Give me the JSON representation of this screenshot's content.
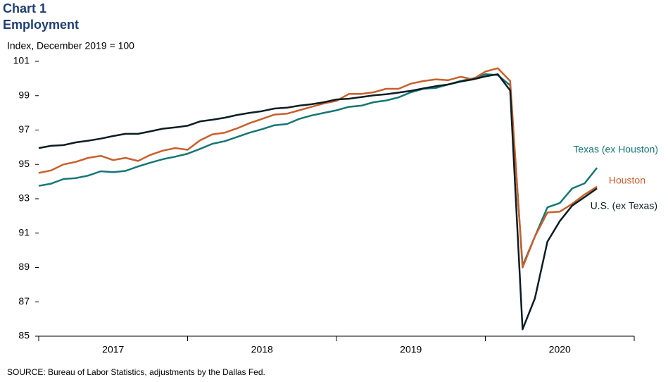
{
  "chart_data": {
    "type": "line",
    "title": "Chart 1",
    "subtitle": "Employment",
    "y_label": "Index,  December 2019 = 100",
    "source": "SOURCE:  Bureau  of Labor Statistics, adjustments by the Dallas Fed.",
    "x": [
      2017,
      2017.083,
      2017.167,
      2017.25,
      2017.333,
      2017.417,
      2017.5,
      2017.583,
      2017.667,
      2017.75,
      2017.833,
      2017.917,
      2018,
      2018.083,
      2018.167,
      2018.25,
      2018.333,
      2018.417,
      2018.5,
      2018.583,
      2018.667,
      2018.75,
      2018.833,
      2018.917,
      2019,
      2019.083,
      2019.167,
      2019.25,
      2019.333,
      2019.417,
      2019.5,
      2019.583,
      2019.667,
      2019.75,
      2019.833,
      2019.917,
      2020,
      2020.083,
      2020.167,
      2020.25,
      2020.333,
      2020.417,
      2020.5,
      2020.583,
      2020.667,
      2020.75
    ],
    "xlim": [
      2017,
      2021
    ],
    "xticks": [
      {
        "value": 2017,
        "label": ""
      },
      {
        "value": 2018,
        "label": ""
      },
      {
        "value": 2019,
        "label": ""
      },
      {
        "value": 2020,
        "label": ""
      },
      {
        "value": 2021,
        "label": ""
      }
    ],
    "year_labels": [
      {
        "value": 2017.5,
        "label": "2017"
      },
      {
        "value": 2018.5,
        "label": "2018"
      },
      {
        "value": 2019.5,
        "label": "2019"
      },
      {
        "value": 2020.5,
        "label": "2020"
      }
    ],
    "ylim": [
      85,
      101
    ],
    "yticks": [
      85,
      87,
      89,
      91,
      93,
      95,
      97,
      99,
      101
    ],
    "grid": false,
    "series": [
      {
        "name": "Texas (ex Houston)",
        "color": "#167676",
        "values": [
          93.75,
          93.88,
          94.15,
          94.2,
          94.35,
          94.6,
          94.55,
          94.62,
          94.88,
          95.1,
          95.3,
          95.45,
          95.62,
          95.9,
          96.2,
          96.35,
          96.6,
          96.85,
          97.05,
          97.28,
          97.35,
          97.65,
          97.85,
          98.0,
          98.15,
          98.35,
          98.42,
          98.62,
          98.72,
          98.9,
          99.2,
          99.4,
          99.45,
          99.65,
          99.85,
          100.0,
          100.25,
          100.2,
          99.6,
          89.1,
          90.8,
          92.5,
          92.75,
          93.6,
          93.9,
          94.8
        ]
      },
      {
        "name": "Houston",
        "color": "#c8602d",
        "values": [
          94.5,
          94.65,
          95.0,
          95.15,
          95.38,
          95.5,
          95.25,
          95.38,
          95.2,
          95.55,
          95.8,
          95.95,
          95.85,
          96.4,
          96.75,
          96.85,
          97.1,
          97.4,
          97.65,
          97.9,
          97.95,
          98.15,
          98.35,
          98.55,
          98.7,
          99.1,
          99.1,
          99.2,
          99.4,
          99.4,
          99.7,
          99.85,
          99.95,
          99.9,
          100.1,
          99.95,
          100.4,
          100.6,
          99.85,
          89.0,
          90.8,
          92.2,
          92.25,
          92.7,
          93.25,
          93.7
        ]
      },
      {
        "name": "U.S. (ex Texas)",
        "color": "#0b1d22",
        "values": [
          95.95,
          96.08,
          96.12,
          96.28,
          96.38,
          96.5,
          96.65,
          96.78,
          96.78,
          96.92,
          97.08,
          97.15,
          97.25,
          97.5,
          97.6,
          97.72,
          97.88,
          98.0,
          98.1,
          98.25,
          98.3,
          98.42,
          98.5,
          98.62,
          98.78,
          98.82,
          98.92,
          99.02,
          99.08,
          99.18,
          99.28,
          99.42,
          99.55,
          99.65,
          99.82,
          99.95,
          100.12,
          100.25,
          99.3,
          85.4,
          87.2,
          90.5,
          91.7,
          92.6,
          93.1,
          93.6
        ]
      }
    ]
  }
}
